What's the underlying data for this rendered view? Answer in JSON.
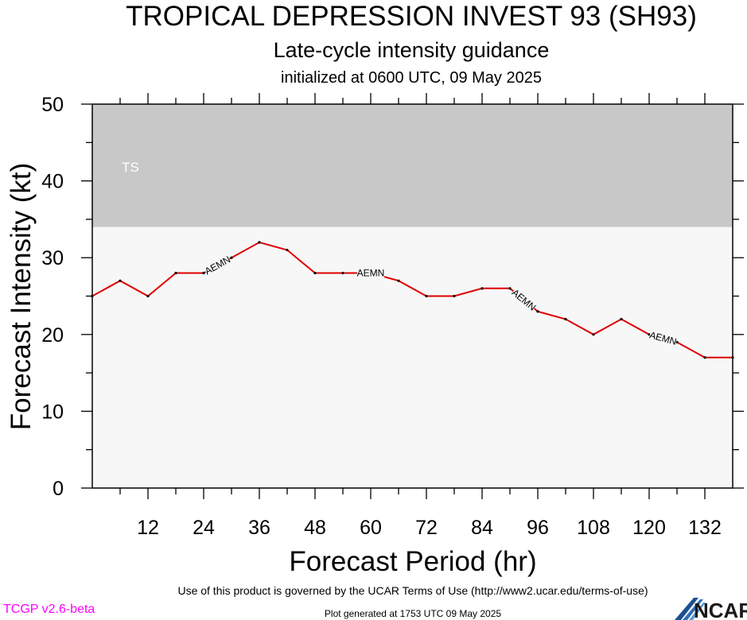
{
  "header": {
    "title": "TROPICAL DEPRESSION INVEST 93 (SH93)",
    "subtitle": "Late-cycle intensity guidance",
    "init_text": "initialized at 0600 UTC, 09 May 2025"
  },
  "chart_data": {
    "type": "line",
    "xlabel": "Forecast Period (hr)",
    "ylabel": "Forecast Intensity (kt)",
    "xlim": [
      0,
      138
    ],
    "ylim": [
      0,
      50
    ],
    "x_ticks": [
      12,
      24,
      36,
      48,
      60,
      72,
      84,
      96,
      108,
      120,
      132
    ],
    "y_ticks": [
      0,
      10,
      20,
      30,
      40,
      50
    ],
    "bands": [
      {
        "label": "TS",
        "y_from": 34,
        "y_to": 50,
        "color": "#c8c8c8"
      }
    ],
    "plot_background": "#f7f7f7",
    "series": [
      {
        "name": "AEMN",
        "color": "#e00000",
        "x": [
          0,
          6,
          12,
          18,
          24,
          30,
          36,
          42,
          48,
          54,
          60,
          66,
          72,
          78,
          84,
          90,
          96,
          102,
          108,
          114,
          120,
          126,
          132,
          138
        ],
        "values": [
          25,
          27,
          25,
          28,
          28,
          30,
          32,
          31,
          28,
          28,
          28,
          27,
          25,
          25,
          26,
          26,
          23,
          22,
          20,
          22,
          20,
          19,
          17,
          17
        ],
        "label_positions_hr": [
          27,
          60,
          93,
          123
        ]
      }
    ],
    "grid": false,
    "legend": "none"
  },
  "footer": {
    "terms": "Use of this product is governed by the UCAR Terms of Use (http://www2.ucar.edu/terms-of-use)",
    "generated": "Plot generated at 1753 UTC   09 May 2025",
    "version": "TCGP v2.6-beta",
    "version_color": "#ff00ff",
    "logo_text": "NCAR"
  }
}
